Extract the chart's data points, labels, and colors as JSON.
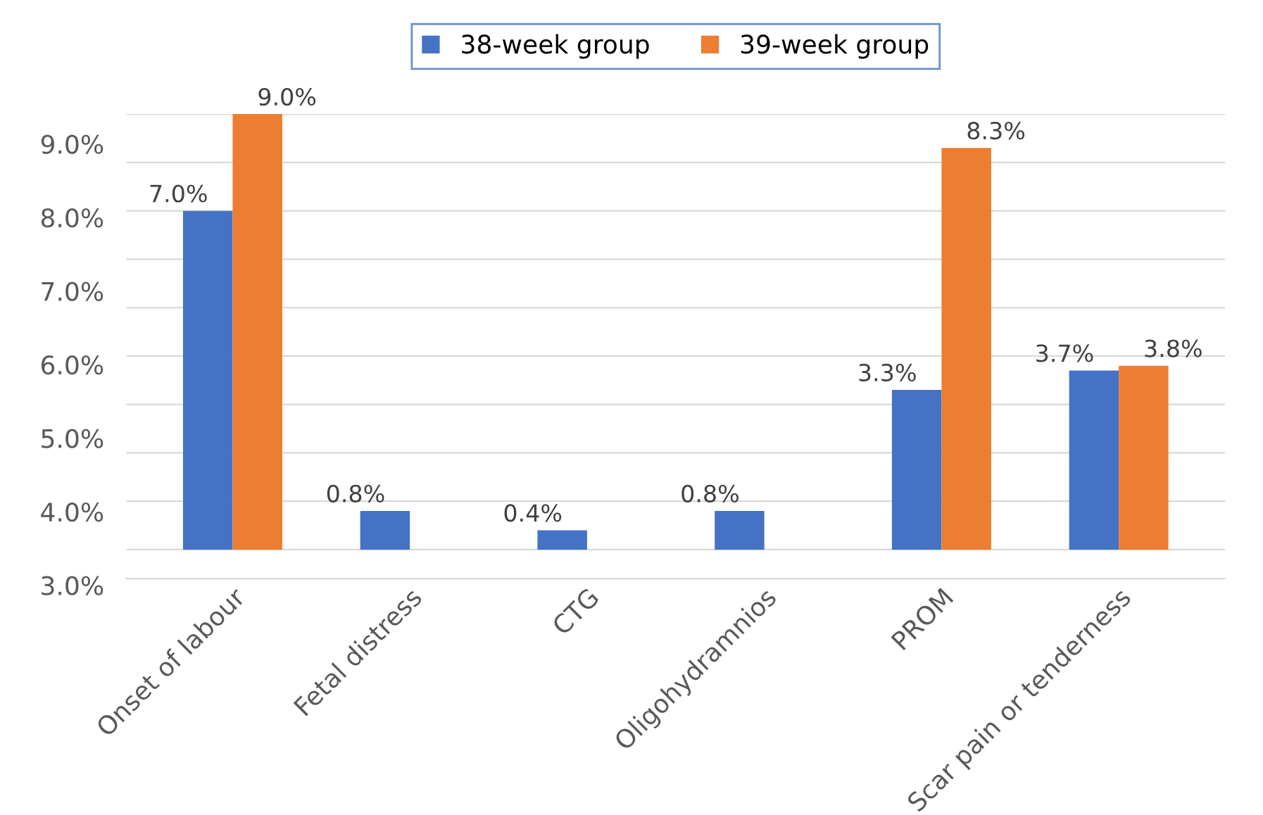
{
  "chart_data": {
    "type": "bar",
    "categories": [
      "Onset of labour",
      "Fetal distress",
      "CTG",
      "Oligohydramnios",
      "PROM",
      "Scar pain or tenderness"
    ],
    "series": [
      {
        "name": "38-week group",
        "color": "#4472c4",
        "values": [
          7.0,
          0.8,
          0.4,
          0.8,
          3.3,
          3.7
        ],
        "value_labels": [
          "7.0%",
          "0.8%",
          "0.4%",
          "0.8%",
          "3.3%",
          "3.7%"
        ]
      },
      {
        "name": "39-week group",
        "color": "#ed7d31",
        "values": [
          9.0,
          0,
          0,
          0,
          8.3,
          3.8
        ],
        "value_labels": [
          "9.0%",
          null,
          null,
          null,
          "8.3%",
          "3.8%"
        ]
      }
    ],
    "ylim": [
      -0.6,
      9
    ],
    "yticks": [
      {
        "value": 0,
        "label": null
      },
      {
        "value": 1,
        "label": null
      },
      {
        "value": 2,
        "label": null
      },
      {
        "value": 3,
        "label": null
      },
      {
        "value": 4,
        "label": null
      },
      {
        "value": 5,
        "label": null
      },
      {
        "value": 6,
        "label": null
      },
      {
        "value": 7,
        "label": null
      },
      {
        "value": 8,
        "label": null
      },
      {
        "value": 9,
        "label": null
      }
    ],
    "annotations": [
      "9.0%",
      "8.0%",
      "7.0%",
      "6.0%",
      "5.0%",
      "4.0%",
      "3.0%"
    ],
    "tick_labels": "x",
    "grid": "y",
    "legend": "top"
  }
}
